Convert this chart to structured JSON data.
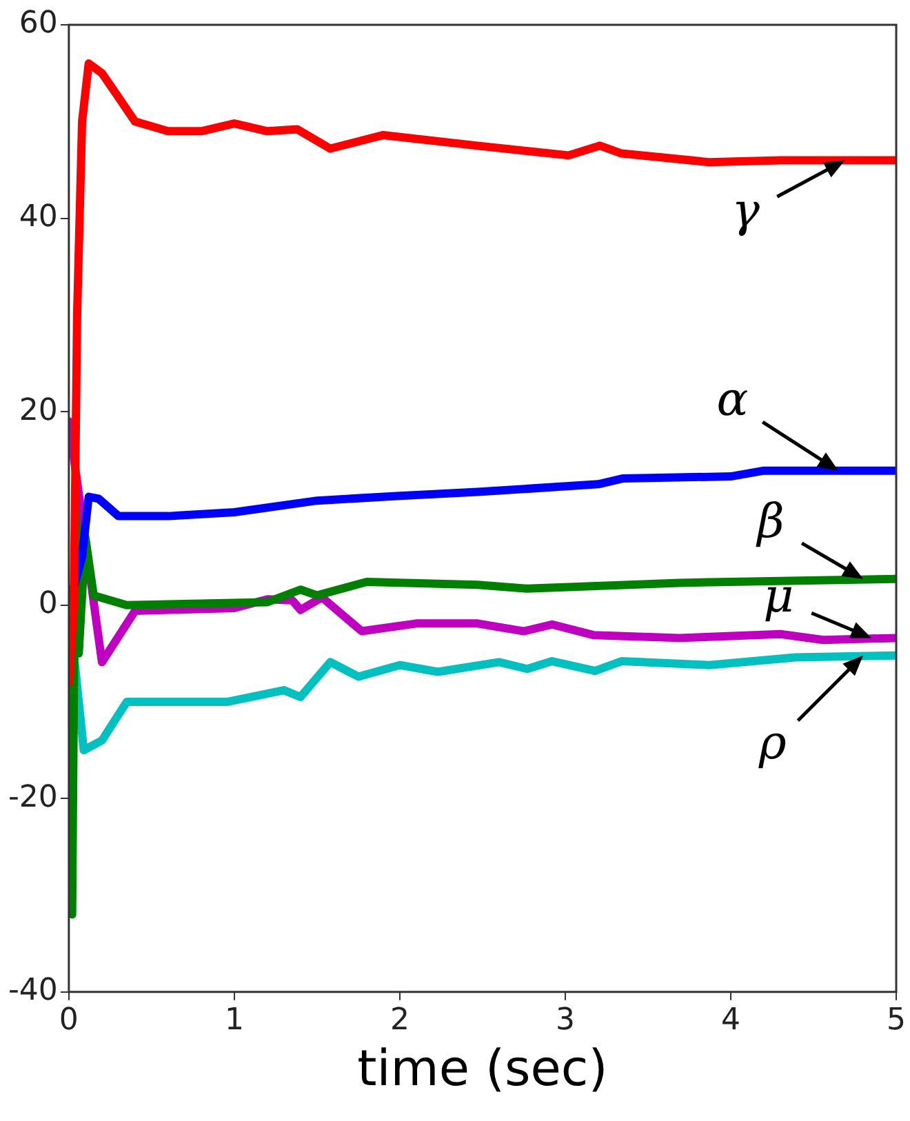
{
  "chart_data": {
    "type": "line",
    "xlabel": "time (sec)",
    "xlim": [
      0,
      5
    ],
    "xticks": [
      0,
      1,
      2,
      3,
      4,
      5
    ],
    "ylim": [
      -40,
      60
    ],
    "yticks": [
      -40,
      -20,
      0,
      20,
      40,
      60
    ],
    "grid": false,
    "legend": false,
    "marker": "none",
    "line_style": "solid",
    "series": [
      {
        "color": "#ff0000",
        "x": [
          0,
          0.03,
          0.05,
          0.08,
          0.12,
          0.2,
          0.3,
          0.4,
          0.6,
          0.8,
          1.0,
          1.2,
          1.38,
          1.58,
          1.9,
          2.47,
          3.02,
          3.21,
          3.34,
          3.87,
          4.3,
          5
        ],
        "values": [
          -8,
          0,
          30,
          50,
          56,
          55,
          52.5,
          50,
          49,
          49,
          49.8,
          49,
          49.2,
          47.2,
          48.6,
          47.5,
          46.5,
          47.5,
          46.7,
          45.8,
          46,
          46
        ]
      },
      {
        "color": "#0000ff",
        "x": [
          0,
          0.08,
          0.12,
          0.18,
          0.3,
          0.6,
          1.0,
          1.5,
          2.0,
          2.47,
          3.2,
          3.35,
          4.0,
          4.2,
          5
        ],
        "values": [
          0,
          5,
          11.2,
          11,
          9.2,
          9.2,
          9.6,
          10.8,
          11.3,
          11.7,
          12.5,
          13.1,
          13.3,
          13.9,
          13.9
        ]
      },
      {
        "color": "#008000",
        "x": [
          0,
          0.02,
          0.04,
          0.06,
          0.1,
          0.15,
          0.25,
          0.35,
          1.2,
          1.4,
          1.5,
          1.8,
          2.47,
          2.77,
          3.69,
          5
        ],
        "values": [
          0,
          -32,
          12,
          -5,
          7,
          1,
          0.5,
          0,
          0.3,
          1.6,
          1,
          2.4,
          2.1,
          1.7,
          2.3,
          2.7
        ]
      },
      {
        "color": "#c000c0",
        "x": [
          0,
          0.2,
          0.4,
          1.0,
          1.2,
          1.35,
          1.4,
          1.53,
          1.77,
          2.1,
          2.47,
          2.75,
          2.92,
          3.17,
          3.69,
          4.3,
          4.56,
          5
        ],
        "values": [
          19,
          -5.9,
          -0.6,
          -0.3,
          0.6,
          0.5,
          -0.5,
          0.8,
          -2.7,
          -1.9,
          -1.9,
          -2.7,
          -2.0,
          -3.1,
          -3.4,
          -3.0,
          -3.6,
          -3.4
        ]
      },
      {
        "color": "#00c0c0",
        "x": [
          0,
          0.09,
          0.2,
          0.35,
          0.96,
          1.3,
          1.4,
          1.58,
          1.75,
          2.0,
          2.23,
          2.6,
          2.77,
          2.92,
          3.18,
          3.34,
          3.87,
          4.39,
          5
        ],
        "values": [
          0,
          -15,
          -14,
          -10,
          -10,
          -8.8,
          -9.5,
          -5.9,
          -7.4,
          -6.2,
          -6.9,
          -5.9,
          -6.6,
          -5.8,
          -6.8,
          -5.8,
          -6.2,
          -5.4,
          -5.2
        ]
      }
    ],
    "annotations": [
      {
        "text": "γ",
        "x": 4.69,
        "y": 46
      },
      {
        "text": "α",
        "x": 4.65,
        "y": 13.9
      },
      {
        "text": "β",
        "x": 4.8,
        "y": 2.7
      },
      {
        "text": "μ",
        "x": 4.85,
        "y": -3.4
      },
      {
        "text": "ρ",
        "x": 4.8,
        "y": -5.2
      }
    ]
  }
}
